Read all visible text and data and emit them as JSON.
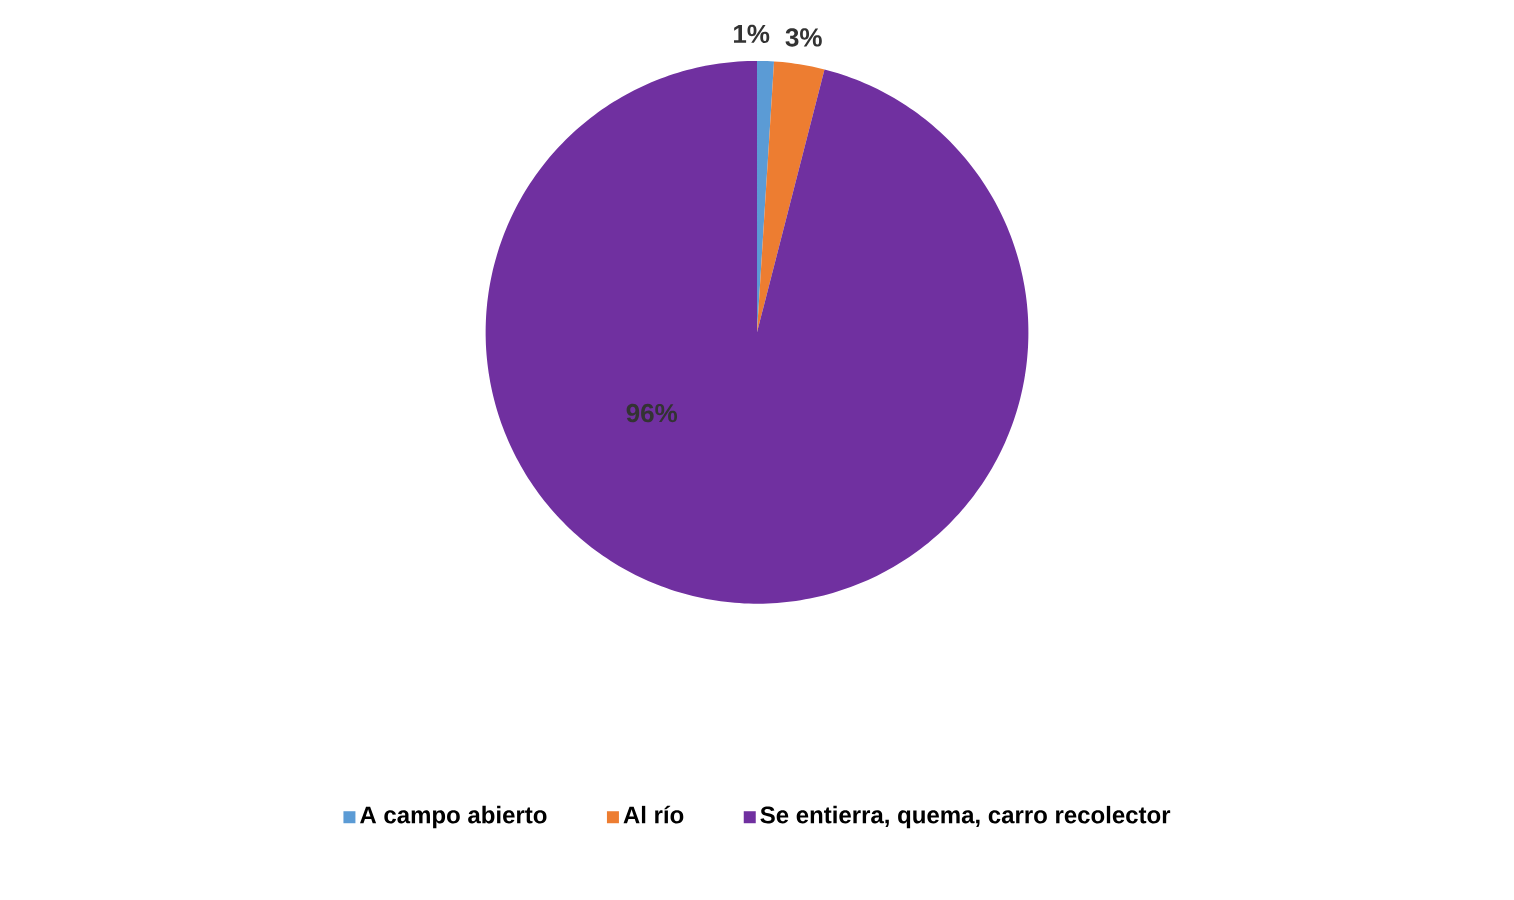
{
  "chart_data": {
    "type": "pie",
    "categories": [
      "A campo abierto",
      "Al río",
      "Se entierra, quema, carro recolector"
    ],
    "values": [
      1,
      3,
      96
    ],
    "colors": [
      "#5b9bd5",
      "#ed7d31",
      "#7030a0"
    ],
    "value_labels": [
      "1%",
      "3%",
      "96%"
    ],
    "legend": "bottom"
  }
}
